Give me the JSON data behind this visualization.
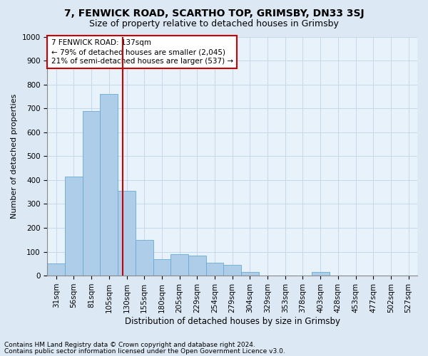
{
  "title1": "7, FENWICK ROAD, SCARTHO TOP, GRIMSBY, DN33 3SJ",
  "title2": "Size of property relative to detached houses in Grimsby",
  "xlabel": "Distribution of detached houses by size in Grimsby",
  "ylabel": "Number of detached properties",
  "footnote1": "Contains HM Land Registry data © Crown copyright and database right 2024.",
  "footnote2": "Contains public sector information licensed under the Open Government Licence v3.0.",
  "annotation_line1": "7 FENWICK ROAD: 137sqm",
  "annotation_line2": "← 79% of detached houses are smaller (2,045)",
  "annotation_line3": "21% of semi-detached houses are larger (537) →",
  "bar_labels": [
    "31sqm",
    "56sqm",
    "81sqm",
    "105sqm",
    "130sqm",
    "155sqm",
    "180sqm",
    "205sqm",
    "229sqm",
    "254sqm",
    "279sqm",
    "304sqm",
    "329sqm",
    "353sqm",
    "378sqm",
    "403sqm",
    "428sqm",
    "453sqm",
    "477sqm",
    "502sqm",
    "527sqm"
  ],
  "bar_values": [
    50,
    415,
    690,
    760,
    355,
    150,
    70,
    90,
    85,
    55,
    45,
    15,
    0,
    0,
    0,
    15,
    0,
    0,
    0,
    0,
    0
  ],
  "bar_color": "#aecde8",
  "bar_edge_color": "#6aaad4",
  "vline_color": "#cc0000",
  "vline_position": 4.28,
  "ylim_max": 1000,
  "ytick_step": 100,
  "grid_color": "#c5d8eb",
  "bg_color": "#dce8f4",
  "plot_bg_color": "#e8f2fa",
  "annotation_box_facecolor": "#ffffff",
  "annotation_box_edgecolor": "#cc0000",
  "title1_fontsize": 10,
  "title2_fontsize": 9,
  "xlabel_fontsize": 8.5,
  "ylabel_fontsize": 8,
  "tick_fontsize": 7.5,
  "annotation_fontsize": 7.5,
  "footnote_fontsize": 6.5
}
